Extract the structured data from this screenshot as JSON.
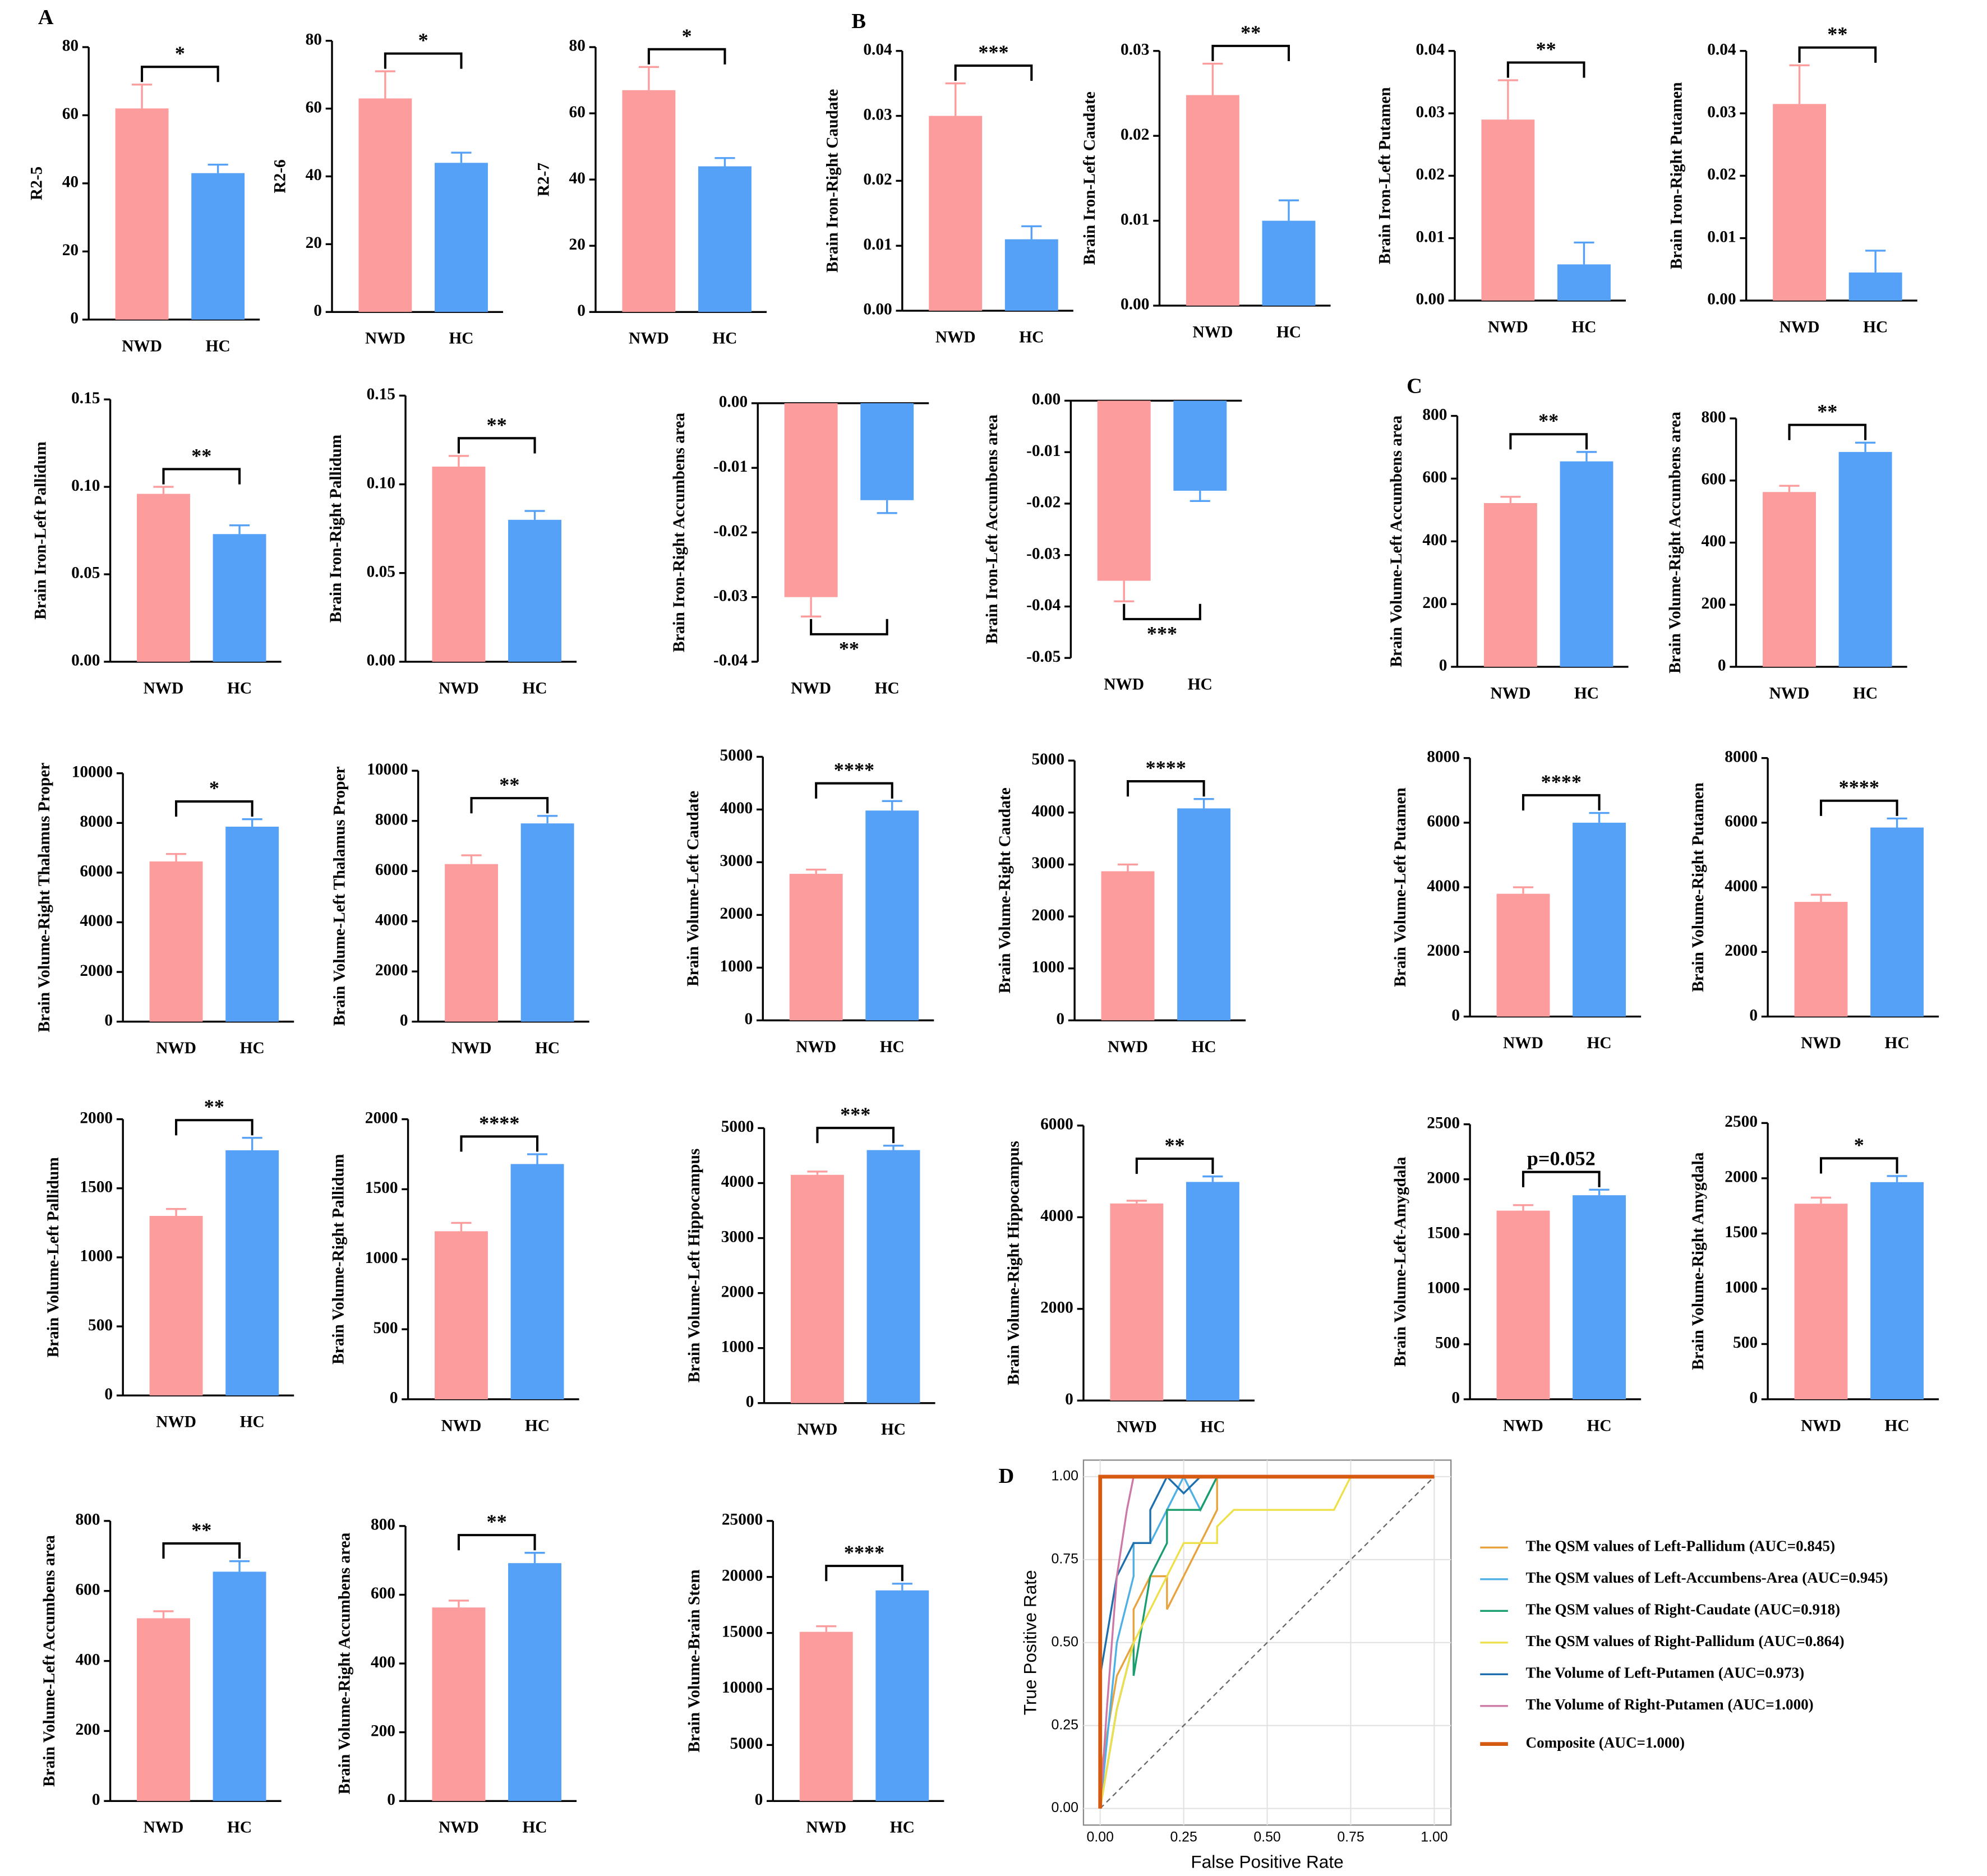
{
  "chart_data": [
    {
      "type": "bar",
      "panel": "A",
      "ylabel": "R2-5",
      "categories": [
        "NWD",
        "HC"
      ],
      "values": [
        62,
        43
      ],
      "errors": [
        7,
        2.5
      ],
      "colors": [
        "#fc9c9c",
        "#55a1f7"
      ],
      "ylim": [
        0,
        80
      ],
      "yticks": [
        0,
        20,
        40,
        60,
        80
      ],
      "sig": "*"
    },
    {
      "type": "bar",
      "ylabel": "R2-6",
      "categories": [
        "NWD",
        "HC"
      ],
      "values": [
        63,
        44
      ],
      "errors": [
        8,
        3
      ],
      "colors": [
        "#fc9c9c",
        "#55a1f7"
      ],
      "ylim": [
        0,
        80
      ],
      "yticks": [
        0,
        20,
        40,
        60,
        80
      ],
      "sig": "*"
    },
    {
      "type": "bar",
      "ylabel": "R2-7",
      "categories": [
        "NWD",
        "HC"
      ],
      "values": [
        67,
        44
      ],
      "errors": [
        7,
        2.5
      ],
      "colors": [
        "#fc9c9c",
        "#55a1f7"
      ],
      "ylim": [
        0,
        80
      ],
      "yticks": [
        0,
        20,
        40,
        60,
        80
      ],
      "sig": "*"
    },
    {
      "type": "bar",
      "panel": "B",
      "ylabel": "Brain Iron-Right Caudate",
      "categories": [
        "NWD",
        "HC"
      ],
      "values": [
        0.03,
        0.011
      ],
      "errors": [
        0.005,
        0.002
      ],
      "colors": [
        "#fc9c9c",
        "#55a1f7"
      ],
      "ylim": [
        0,
        0.04
      ],
      "yticks": [
        {
          "value": 0,
          "label": "0.00"
        },
        0.01,
        0.02,
        0.03,
        0.04
      ],
      "sig": "***"
    },
    {
      "type": "bar",
      "ylabel": "Brain Iron-Left Caudate",
      "categories": [
        "NWD",
        "HC"
      ],
      "values": [
        0.0248,
        0.01
      ],
      "errors": [
        0.0037,
        0.0024
      ],
      "colors": [
        "#fc9c9c",
        "#55a1f7"
      ],
      "ylim": [
        0,
        0.03
      ],
      "yticks": [
        {
          "value": 0,
          "label": "0.00"
        },
        0.01,
        0.02,
        0.03
      ],
      "sig": "**"
    },
    {
      "type": "bar",
      "ylabel": "Brain Iron-Left Putamen",
      "categories": [
        "NWD",
        "HC"
      ],
      "values": [
        0.029,
        0.0058
      ],
      "errors": [
        0.0063,
        0.0035
      ],
      "colors": [
        "#fc9c9c",
        "#55a1f7"
      ],
      "ylim": [
        0,
        0.04
      ],
      "yticks": [
        {
          "value": 0,
          "label": "0.00"
        },
        0.01,
        0.02,
        0.03,
        0.04
      ],
      "sig": "**"
    },
    {
      "type": "bar",
      "ylabel": "Brain Iron-Right Putamen",
      "categories": [
        "NWD",
        "HC"
      ],
      "values": [
        0.0315,
        0.0045
      ],
      "errors": [
        0.0062,
        0.0035
      ],
      "colors": [
        "#fc9c9c",
        "#55a1f7"
      ],
      "ylim": [
        0,
        0.04
      ],
      "yticks": [
        {
          "value": 0,
          "label": "0.00"
        },
        0.01,
        0.02,
        0.03,
        0.04
      ],
      "sig": "**"
    },
    {
      "type": "bar",
      "ylabel": "Brain Iron-Left Pallidum",
      "categories": [
        "NWD",
        "HC"
      ],
      "values": [
        0.096,
        0.073
      ],
      "errors": [
        0.004,
        0.005
      ],
      "colors": [
        "#fc9c9c",
        "#55a1f7"
      ],
      "ylim": [
        0,
        0.15
      ],
      "yticks": [
        {
          "value": 0,
          "label": "0.00"
        },
        0.05,
        {
          "value": 0.1,
          "label": "0.10"
        },
        0.15
      ],
      "sig": "**"
    },
    {
      "type": "bar",
      "ylabel": "Brain Iron-Right Pallidum",
      "categories": [
        "NWD",
        "HC"
      ],
      "values": [
        0.11,
        0.08
      ],
      "errors": [
        0.006,
        0.005
      ],
      "colors": [
        "#fc9c9c",
        "#55a1f7"
      ],
      "ylim": [
        0,
        0.15
      ],
      "yticks": [
        {
          "value": 0,
          "label": "0.00"
        },
        0.05,
        {
          "value": 0.1,
          "label": "0.10"
        },
        0.15
      ],
      "sig": "**"
    },
    {
      "type": "bar",
      "ylabel": "Brain Iron-Right Accumbens area",
      "categories": [
        "NWD",
        "HC"
      ],
      "values": [
        -0.03,
        -0.015
      ],
      "errors": [
        0.003,
        0.002
      ],
      "colors": [
        "#fc9c9c",
        "#55a1f7"
      ],
      "ylim": [
        -0.04,
        0
      ],
      "yticks": [
        {
          "value": 0,
          "label": "0.00"
        },
        -0.01,
        -0.02,
        -0.03,
        -0.04
      ],
      "sig": "**"
    },
    {
      "type": "bar",
      "ylabel": "Brain Iron-Left Accumbens area",
      "categories": [
        "NWD",
        "HC"
      ],
      "values": [
        -0.035,
        -0.0175
      ],
      "errors": [
        0.004,
        0.002
      ],
      "colors": [
        "#fc9c9c",
        "#55a1f7"
      ],
      "ylim": [
        -0.05,
        0
      ],
      "yticks": [
        {
          "value": 0,
          "label": "0.00"
        },
        -0.01,
        -0.02,
        -0.03,
        -0.04,
        -0.05
      ],
      "sig": "***"
    },
    {
      "type": "bar",
      "panel": "C",
      "ylabel": "Brain Volume-Left Accumbens area",
      "categories": [
        "NWD",
        "HC"
      ],
      "values": [
        522,
        655
      ],
      "errors": [
        20,
        30
      ],
      "colors": [
        "#fc9c9c",
        "#55a1f7"
      ],
      "ylim": [
        0,
        800
      ],
      "yticks": [
        0,
        200,
        400,
        600,
        800
      ],
      "sig": "**"
    },
    {
      "type": "bar",
      "ylabel": "Brain Volume-Right Accumbens area",
      "categories": [
        "NWD",
        "HC"
      ],
      "values": [
        563,
        692
      ],
      "errors": [
        20,
        30
      ],
      "colors": [
        "#fc9c9c",
        "#55a1f7"
      ],
      "ylim": [
        0,
        800
      ],
      "yticks": [
        0,
        200,
        400,
        600,
        800
      ],
      "sig": "**"
    },
    {
      "type": "bar",
      "ylabel": "Brain Volume-Right Thalamus Proper",
      "categories": [
        "NWD",
        "HC"
      ],
      "values": [
        6450,
        7850
      ],
      "errors": [
        300,
        300
      ],
      "colors": [
        "#fc9c9c",
        "#55a1f7"
      ],
      "ylim": [
        0,
        10000
      ],
      "yticks": [
        0,
        2000,
        4000,
        6000,
        8000,
        10000
      ],
      "sig": "*"
    },
    {
      "type": "bar",
      "ylabel": "Brain Volume-Left Thalamus Proper",
      "categories": [
        "NWD",
        "HC"
      ],
      "values": [
        6280,
        7900
      ],
      "errors": [
        350,
        300
      ],
      "colors": [
        "#fc9c9c",
        "#55a1f7"
      ],
      "ylim": [
        0,
        10000
      ],
      "yticks": [
        0,
        2000,
        4000,
        6000,
        8000,
        10000
      ],
      "sig": "**"
    },
    {
      "type": "bar",
      "ylabel": "Brain Volume-Left Caudate",
      "categories": [
        "NWD",
        "HC"
      ],
      "values": [
        2780,
        3980
      ],
      "errors": [
        80,
        180
      ],
      "colors": [
        "#fc9c9c",
        "#55a1f7"
      ],
      "ylim": [
        0,
        5000
      ],
      "yticks": [
        0,
        1000,
        2000,
        3000,
        4000,
        5000
      ],
      "sig": "****"
    },
    {
      "type": "bar",
      "ylabel": "Brain Volume-Right Caudate",
      "categories": [
        "NWD",
        "HC"
      ],
      "values": [
        2870,
        4080
      ],
      "errors": [
        130,
        180
      ],
      "colors": [
        "#fc9c9c",
        "#55a1f7"
      ],
      "ylim": [
        0,
        5000
      ],
      "yticks": [
        0,
        1000,
        2000,
        3000,
        4000,
        5000
      ],
      "sig": "****"
    },
    {
      "type": "bar",
      "ylabel": "Brain Volume-Left Putamen",
      "categories": [
        "NWD",
        "HC"
      ],
      "values": [
        3800,
        6000
      ],
      "errors": [
        200,
        300
      ],
      "colors": [
        "#fc9c9c",
        "#55a1f7"
      ],
      "ylim": [
        0,
        8000
      ],
      "yticks": [
        0,
        2000,
        4000,
        6000,
        8000
      ],
      "sig": "****"
    },
    {
      "type": "bar",
      "ylabel": "Brain Volume-Right Putamen",
      "categories": [
        "NWD",
        "HC"
      ],
      "values": [
        3550,
        5850
      ],
      "errors": [
        220,
        280
      ],
      "colors": [
        "#fc9c9c",
        "#55a1f7"
      ],
      "ylim": [
        0,
        8000
      ],
      "yticks": [
        0,
        2000,
        4000,
        6000,
        8000
      ],
      "sig": "****"
    },
    {
      "type": "bar",
      "ylabel": "Brain Volume-Left Pallidum",
      "categories": [
        "NWD",
        "HC"
      ],
      "values": [
        1300,
        1775
      ],
      "errors": [
        50,
        90
      ],
      "colors": [
        "#fc9c9c",
        "#55a1f7"
      ],
      "ylim": [
        0,
        2000
      ],
      "yticks": [
        0,
        500,
        1000,
        1500,
        2000
      ],
      "sig": "**"
    },
    {
      "type": "bar",
      "ylabel": "Brain Volume-Right Pallidum",
      "categories": [
        "NWD",
        "HC"
      ],
      "values": [
        1200,
        1680
      ],
      "errors": [
        60,
        70
      ],
      "colors": [
        "#fc9c9c",
        "#55a1f7"
      ],
      "ylim": [
        0,
        2000
      ],
      "yticks": [
        0,
        500,
        1000,
        1500,
        2000
      ],
      "sig": "****"
    },
    {
      "type": "bar",
      "ylabel": "Brain Volume-Left Hippocampus",
      "categories": [
        "NWD",
        "HC"
      ],
      "values": [
        4150,
        4600
      ],
      "errors": [
        60,
        80
      ],
      "colors": [
        "#fc9c9c",
        "#55a1f7"
      ],
      "ylim": [
        0,
        5000
      ],
      "yticks": [
        0,
        1000,
        2000,
        3000,
        4000,
        5000
      ],
      "sig": "***"
    },
    {
      "type": "bar",
      "ylabel": "Brain Volume-Right Hippocampus",
      "categories": [
        "NWD",
        "HC"
      ],
      "values": [
        4300,
        4770
      ],
      "errors": [
        60,
        120
      ],
      "colors": [
        "#fc9c9c",
        "#55a1f7"
      ],
      "ylim": [
        0,
        6000
      ],
      "yticks": [
        0,
        2000,
        4000,
        6000
      ],
      "sig": "**"
    },
    {
      "type": "bar",
      "ylabel": "Brain Volume-Left-Amygdala",
      "categories": [
        "NWD",
        "HC"
      ],
      "values": [
        1715,
        1855
      ],
      "errors": [
        50,
        50
      ],
      "colors": [
        "#fc9c9c",
        "#55a1f7"
      ],
      "ylim": [
        0,
        2500
      ],
      "yticks": [
        0,
        500,
        1000,
        1500,
        2000,
        2500
      ],
      "sig": "p=0.052"
    },
    {
      "type": "bar",
      "ylabel": "Brain Volume-Right Amygdala",
      "categories": [
        "NWD",
        "HC"
      ],
      "values": [
        1770,
        1965
      ],
      "errors": [
        55,
        55
      ],
      "colors": [
        "#fc9c9c",
        "#55a1f7"
      ],
      "ylim": [
        0,
        2500
      ],
      "yticks": [
        0,
        500,
        1000,
        1500,
        2000,
        2500
      ],
      "sig": "*"
    },
    {
      "type": "bar",
      "ylabel": "Brain Volume-Left Accumbens area",
      "categories": [
        "NWD",
        "HC"
      ],
      "values": [
        522,
        655
      ],
      "errors": [
        20,
        30
      ],
      "colors": [
        "#fc9c9c",
        "#55a1f7"
      ],
      "ylim": [
        0,
        800
      ],
      "yticks": [
        0,
        200,
        400,
        600,
        800
      ],
      "sig": "**"
    },
    {
      "type": "bar",
      "ylabel": "Brain Volume-Right Accumbens area",
      "categories": [
        "NWD",
        "HC"
      ],
      "values": [
        563,
        692
      ],
      "errors": [
        20,
        30
      ],
      "colors": [
        "#fc9c9c",
        "#55a1f7"
      ],
      "ylim": [
        0,
        800
      ],
      "yticks": [
        0,
        200,
        400,
        600,
        800
      ],
      "sig": "**"
    },
    {
      "type": "bar",
      "ylabel": "Brain Volume-Brain Stem",
      "categories": [
        "NWD",
        "HC"
      ],
      "values": [
        15100,
        18800
      ],
      "errors": [
        500,
        600
      ],
      "colors": [
        "#fc9c9c",
        "#55a1f7"
      ],
      "ylim": [
        0,
        25000
      ],
      "yticks": [
        0,
        5000,
        10000,
        15000,
        20000,
        25000
      ],
      "sig": "****"
    },
    {
      "type": "line",
      "panel": "D",
      "xlabel": "False Positive Rate",
      "ylabel": "True Positive Rate",
      "grid": true,
      "xlim": [
        -0.05,
        1.05
      ],
      "ylim": [
        -0.05,
        1.05
      ],
      "xticks": [
        {
          "value": 0,
          "label": "0.00"
        },
        0.25,
        {
          "value": 0.5,
          "label": "0.50"
        },
        0.75,
        {
          "value": 1,
          "label": "1.00"
        }
      ],
      "yticks": [
        {
          "value": 0,
          "label": "0.00"
        },
        0.25,
        {
          "value": 0.5,
          "label": "0.50"
        },
        0.75,
        {
          "value": 1,
          "label": "1.00"
        }
      ],
      "series": [
        {
          "name": "The QSM values of Left-Pallidum  (AUC=0.845)",
          "color": "#e8a33c",
          "x": [
            0,
            0,
            0.05,
            0.1,
            0.1,
            0.15,
            0.2,
            0.2,
            0.25,
            0.3,
            0.35,
            0.35,
            0.4,
            1
          ],
          "values": [
            0,
            0.1,
            0.4,
            0.5,
            0.6,
            0.7,
            0.7,
            0.6,
            0.7,
            0.8,
            0.9,
            1,
            1,
            1
          ]
        },
        {
          "name": "The QSM values of Left-Accumbens-Area  (AUC=0.945)",
          "color": "#4fb0e6",
          "x": [
            0,
            0.05,
            0.1,
            0.1,
            0.15,
            0.2,
            0.25,
            0.3,
            0.35,
            1
          ],
          "values": [
            0,
            0.5,
            0.7,
            0.8,
            0.8,
            0.9,
            1,
            0.9,
            1,
            1
          ]
        },
        {
          "name": "The QSM values of Right-Caudate  (AUC=0.918)",
          "color": "#1a9e6e",
          "x": [
            0,
            0.05,
            0.1,
            0.1,
            0.15,
            0.2,
            0.2,
            0.3,
            0.35,
            1
          ],
          "values": [
            0,
            0.3,
            0.5,
            0.4,
            0.7,
            0.8,
            0.9,
            0.9,
            1,
            1
          ]
        },
        {
          "name": "The QSM values of Right-Pallidum  (AUC=0.864)",
          "color": "#eee04a",
          "x": [
            0,
            0.05,
            0.1,
            0.15,
            0.2,
            0.25,
            0.35,
            0.35,
            0.4,
            0.55,
            0.7,
            0.75,
            0.8,
            1
          ],
          "values": [
            0,
            0.3,
            0.5,
            0.6,
            0.7,
            0.8,
            0.8,
            0.85,
            0.9,
            0.9,
            0.9,
            1,
            1,
            1
          ]
        },
        {
          "name": "The Volume of Left-Putamen  (AUC=0.973)",
          "color": "#1e6fae",
          "x": [
            0,
            0,
            0.05,
            0.1,
            0.15,
            0.15,
            0.2,
            0.25,
            0.3,
            1
          ],
          "values": [
            0,
            0.4,
            0.7,
            0.8,
            0.8,
            0.9,
            1,
            0.95,
            1,
            1
          ]
        },
        {
          "name": "The Volume of Right-Putamen (AUC=1.000)",
          "color": "#cc79a7",
          "x": [
            0,
            0.02,
            0.05,
            0.08,
            0.1,
            1
          ],
          "values": [
            0,
            0.3,
            0.7,
            0.9,
            1,
            1
          ]
        },
        {
          "name": "Composite (AUC=1.000)",
          "color": "#d65a10",
          "x": [
            0,
            0,
            1
          ],
          "values": [
            0,
            1,
            1
          ]
        }
      ]
    }
  ]
}
